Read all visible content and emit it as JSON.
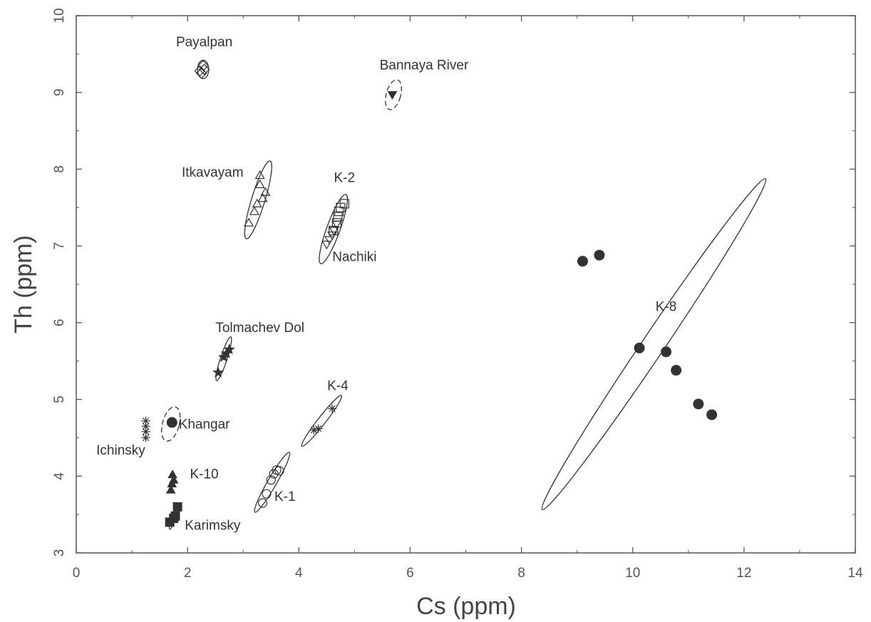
{
  "chart_data": {
    "type": "scatter",
    "title": "",
    "xlabel": "Cs (ppm)",
    "ylabel": "Th (ppm)",
    "xlim": [
      0,
      14
    ],
    "ylim": [
      3,
      10
    ],
    "xticks": [
      "0",
      "2",
      "4",
      "6",
      "8",
      "10",
      "12",
      "14"
    ],
    "yticks": [
      "3",
      "4",
      "5",
      "6",
      "7",
      "8",
      "9",
      "10"
    ],
    "grid": false,
    "legend": "none",
    "series": [
      {
        "name": "Payalpan",
        "marker": "diamond-open",
        "points": [
          [
            2.25,
            9.25
          ],
          [
            2.3,
            9.3
          ],
          [
            2.28,
            9.35
          ],
          [
            2.22,
            9.28
          ]
        ],
        "ellipse": {
          "cx": 2.28,
          "cy": 9.3,
          "rx": 0.1,
          "ry": 0.12,
          "angle_deg": 0,
          "dashed": false
        },
        "label_pos": [
          2.3,
          9.6
        ]
      },
      {
        "name": "Bannaya River",
        "marker": "triangle-down-filled",
        "points": [
          [
            5.68,
            8.97
          ]
        ],
        "ellipse": {
          "cx": 5.7,
          "cy": 8.97,
          "rx": 0.13,
          "ry": 0.2,
          "angle_deg": 15,
          "dashed": true
        },
        "label_pos": [
          6.25,
          9.3
        ]
      },
      {
        "name": "Itkavayam",
        "marker": "triangle-open",
        "points": [
          [
            3.1,
            7.3
          ],
          [
            3.2,
            7.45
          ],
          [
            3.25,
            7.55
          ],
          [
            3.35,
            7.62
          ],
          [
            3.4,
            7.7
          ],
          [
            3.3,
            7.8
          ],
          [
            3.3,
            7.92
          ]
        ],
        "ellipse": {
          "cx": 3.27,
          "cy": 7.6,
          "rx": 0.12,
          "ry": 0.53,
          "angle_deg": 17,
          "dashed": false
        },
        "label_pos": [
          2.45,
          7.9
        ]
      },
      {
        "name": "K-2",
        "marker": "square-open",
        "points": [
          [
            4.62,
            7.2
          ],
          [
            4.68,
            7.3
          ],
          [
            4.7,
            7.38
          ],
          [
            4.72,
            7.45
          ],
          [
            4.75,
            7.5
          ],
          [
            4.82,
            7.55
          ]
        ],
        "ellipse": {
          "cx": 4.62,
          "cy": 7.22,
          "rx": 0.12,
          "ry": 0.48,
          "angle_deg": 20,
          "dashed": false
        },
        "label_pos": [
          4.82,
          7.83
        ]
      },
      {
        "name": "Nachiki",
        "marker": "triangle-down-open",
        "points": [
          [
            4.5,
            7.02
          ],
          [
            4.55,
            7.08
          ],
          [
            4.6,
            7.14
          ],
          [
            4.63,
            7.2
          ],
          [
            4.68,
            7.28
          ]
        ],
        "label_pos": [
          5.0,
          6.8
        ]
      },
      {
        "name": "K-8",
        "marker": "circle-filled",
        "points": [
          [
            9.1,
            6.8
          ],
          [
            9.4,
            6.88
          ],
          [
            10.12,
            5.67
          ],
          [
            10.6,
            5.62
          ],
          [
            10.78,
            5.38
          ],
          [
            11.18,
            4.94
          ],
          [
            11.42,
            4.8
          ]
        ],
        "ellipse": {
          "cx": 10.38,
          "cy": 5.72,
          "rx": 0.2,
          "ry": 2.6,
          "angle_deg": 34,
          "dashed": false
        },
        "label_pos": [
          10.6,
          6.15
        ]
      },
      {
        "name": "Tolmachev Dol",
        "marker": "star",
        "points": [
          [
            2.55,
            5.35
          ],
          [
            2.65,
            5.55
          ],
          [
            2.7,
            5.6
          ],
          [
            2.75,
            5.65
          ]
        ],
        "ellipse": {
          "cx": 2.65,
          "cy": 5.53,
          "rx": 0.06,
          "ry": 0.3,
          "angle_deg": 18,
          "dashed": false
        },
        "label_pos": [
          3.3,
          5.88
        ]
      },
      {
        "name": "K-4",
        "marker": "asterisk",
        "points": [
          [
            4.27,
            4.6
          ],
          [
            4.35,
            4.62
          ],
          [
            4.6,
            4.88
          ]
        ],
        "ellipse": {
          "cx": 4.41,
          "cy": 4.72,
          "rx": 0.07,
          "ry": 0.42,
          "angle_deg": 38,
          "dashed": false
        },
        "label_pos": [
          4.7,
          5.12
        ]
      },
      {
        "name": "Khangar",
        "marker": "circle-filled",
        "points": [
          [
            1.72,
            4.7
          ]
        ],
        "ellipse": {
          "cx": 1.7,
          "cy": 4.68,
          "rx": 0.15,
          "ry": 0.23,
          "angle_deg": 15,
          "dashed": true
        },
        "label_pos": [
          2.3,
          4.62
        ]
      },
      {
        "name": "Ichinsky",
        "marker": "asterisk",
        "points": [
          [
            1.25,
            4.5
          ],
          [
            1.25,
            4.58
          ],
          [
            1.25,
            4.65
          ],
          [
            1.25,
            4.72
          ]
        ],
        "label_pos": [
          0.8,
          4.28
        ]
      },
      {
        "name": "K-10",
        "marker": "triangle-filled",
        "points": [
          [
            1.7,
            3.82
          ],
          [
            1.72,
            3.9
          ],
          [
            1.75,
            3.95
          ],
          [
            1.73,
            4.02
          ]
        ],
        "label_pos": [
          2.3,
          3.97
        ]
      },
      {
        "name": "K-1",
        "marker": "circle-open",
        "points": [
          [
            3.35,
            3.65
          ],
          [
            3.42,
            3.77
          ],
          [
            3.5,
            3.95
          ],
          [
            3.55,
            4.03
          ],
          [
            3.6,
            4.08
          ],
          [
            3.65,
            4.07
          ]
        ],
        "ellipse": {
          "cx": 3.52,
          "cy": 3.92,
          "rx": 0.08,
          "ry": 0.45,
          "angle_deg": 30,
          "dashed": false
        },
        "label_pos": [
          3.75,
          3.68
        ]
      },
      {
        "name": "Karimsky",
        "marker": "square-filled",
        "points": [
          [
            1.68,
            3.4
          ],
          [
            1.75,
            3.45
          ],
          [
            1.78,
            3.48
          ],
          [
            1.82,
            3.6
          ]
        ],
        "ellipse": {
          "cx": 1.76,
          "cy": 3.47,
          "rx": 0.04,
          "ry": 0.17,
          "angle_deg": 20,
          "dashed": false
        },
        "label_pos": [
          2.45,
          3.3
        ]
      }
    ]
  }
}
